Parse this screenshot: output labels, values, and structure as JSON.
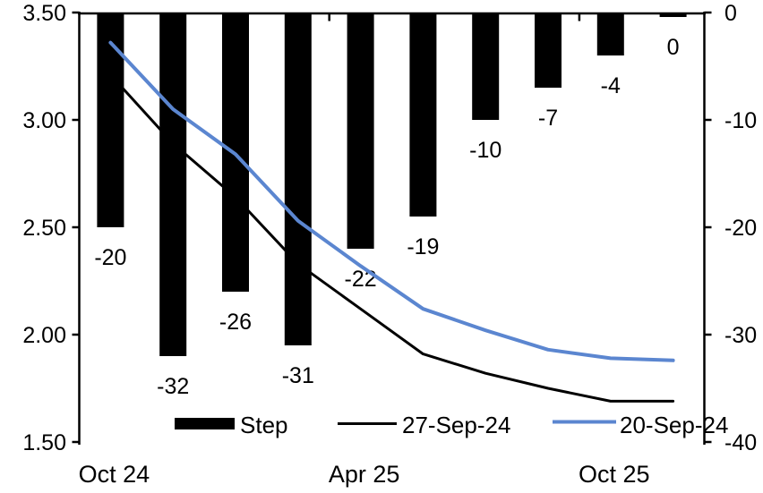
{
  "chart_data": {
    "type": "bar+line",
    "title": "",
    "n_categories": 10,
    "grid": false,
    "legend_position": "bottom",
    "x_axis": {
      "tick_labels": [
        {
          "text": "Oct 24",
          "category_index": 0
        },
        {
          "text": "Apr 25",
          "category_index": 4
        },
        {
          "text": "Oct 25",
          "category_index": 8
        }
      ],
      "boundary_tick_category_indices": [
        4,
        8
      ]
    },
    "left_axis": {
      "min": 1.5,
      "max": 3.5,
      "tick_values": [
        3.5,
        3.0,
        2.5,
        2.0,
        1.5
      ],
      "tick_labels": [
        "3.50",
        "3.00",
        "2.50",
        "2.00",
        "1.50"
      ]
    },
    "right_axis": {
      "min": -40,
      "max": 0,
      "tick_values": [
        0,
        -10,
        -20,
        -30,
        -40
      ],
      "tick_labels": [
        "0",
        "-10",
        "-20",
        "-30",
        "-40"
      ]
    },
    "series": [
      {
        "name": "Step",
        "type": "bar",
        "axis": "right",
        "color": "#000000",
        "values": [
          -20,
          -32,
          -26,
          -31,
          -22,
          -19,
          -10,
          -7,
          -4,
          0
        ],
        "data_labels": [
          "-20",
          "-32",
          "-26",
          "-31",
          "-22",
          "-19",
          "-10",
          "-7",
          "-4",
          "0"
        ]
      },
      {
        "name": "27-Sep-24",
        "type": "line",
        "axis": "left",
        "color": "#000000",
        "stroke_width": 3,
        "values": [
          3.21,
          2.89,
          2.64,
          2.33,
          2.12,
          1.91,
          1.82,
          1.75,
          1.69,
          1.69
        ]
      },
      {
        "name": "20-Sep-24",
        "type": "line",
        "axis": "left",
        "color": "#5B86D0",
        "stroke_width": 4,
        "values": [
          3.36,
          3.05,
          2.84,
          2.53,
          2.32,
          2.12,
          2.02,
          1.93,
          1.89,
          1.88
        ]
      }
    ],
    "legend": {
      "entries": [
        {
          "label": "Step",
          "swatch": "bar",
          "color": "#000000"
        },
        {
          "label": "27-Sep-24",
          "swatch": "line",
          "color": "#000000"
        },
        {
          "label": "20-Sep-24",
          "swatch": "line",
          "color": "#5B86D0"
        }
      ]
    }
  }
}
